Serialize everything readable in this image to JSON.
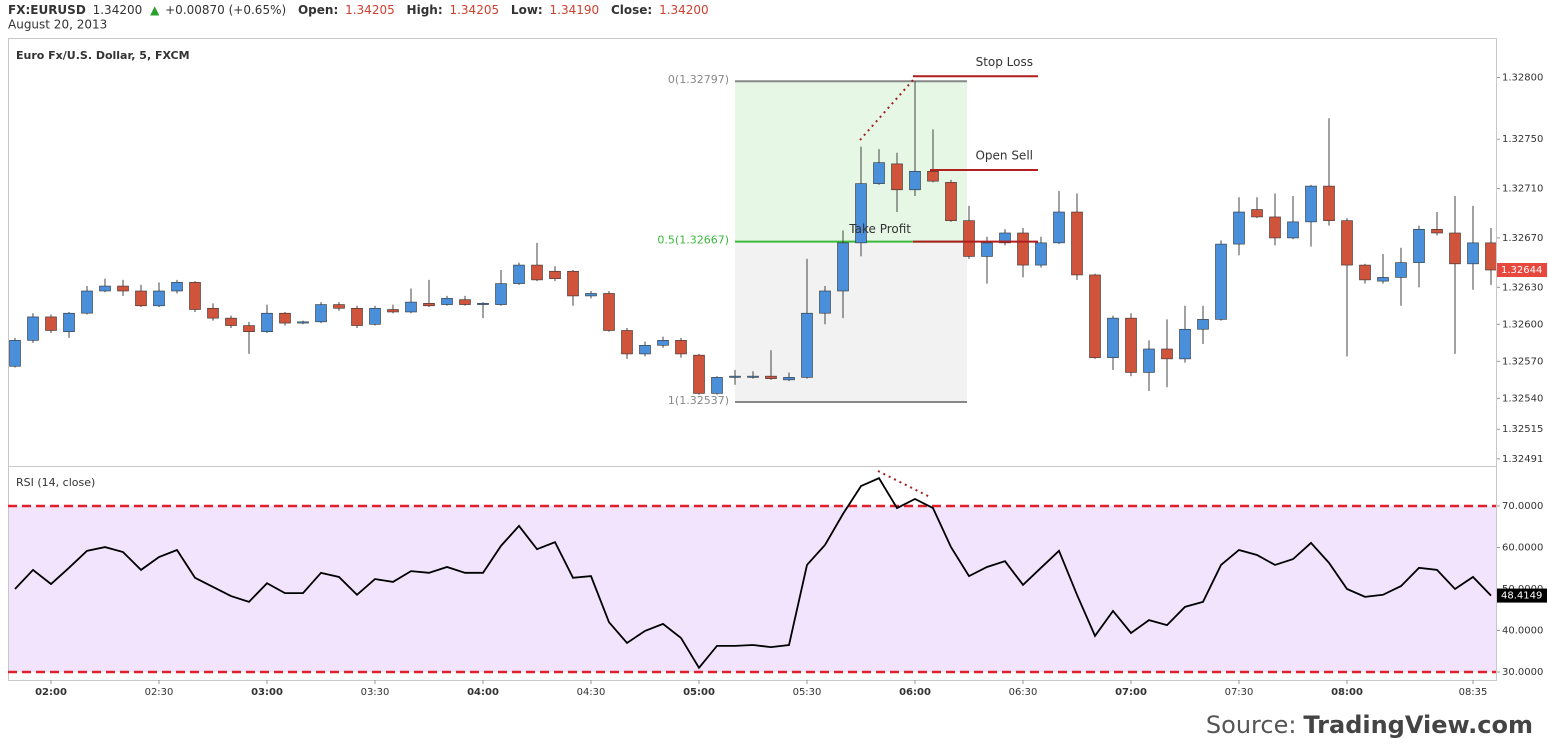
{
  "header": {
    "symbol": "FX:EURUSD",
    "price": "1.34200",
    "change": "+0.00870 (+0.65%)",
    "open_label": "Open:",
    "open": "1.34205",
    "high_label": "High:",
    "high": "1.34205",
    "low_label": "Low:",
    "low": "1.34190",
    "close_label": "Close:",
    "close": "1.34200",
    "date": "August 20, 2013"
  },
  "source": {
    "prefix": "Source:",
    "site": "TradingView.com"
  },
  "chart_data": [
    {
      "type": "candlestick",
      "title": "Euro Fx/U.S. Dollar, 5, FXCM",
      "categories": [
        null,
        null,
        "02:00",
        null,
        null,
        null,
        null,
        null,
        "02:30",
        null,
        null,
        null,
        null,
        null,
        "03:00",
        null,
        null,
        null,
        null,
        null,
        "03:30",
        null,
        null,
        null,
        null,
        null,
        "04:00",
        null,
        null,
        null,
        null,
        null,
        "04:30",
        null,
        null,
        null,
        null,
        null,
        "05:00",
        null,
        null,
        null,
        null,
        null,
        "05:30",
        null,
        null,
        null,
        null,
        null,
        "06:00",
        null,
        null,
        null,
        null,
        null,
        "06:30",
        null,
        null,
        null,
        null,
        null,
        "07:00",
        null,
        null,
        null,
        null,
        null,
        "07:30",
        null,
        null,
        null,
        null,
        null,
        "08:00",
        null,
        null,
        null,
        null,
        null,
        null,
        "08:35",
        null
      ],
      "open": [
        1.32566,
        1.32587,
        1.32606,
        1.32594,
        1.32609,
        1.32627,
        1.32631,
        1.32627,
        1.32615,
        1.32627,
        1.32634,
        1.32613,
        1.32605,
        1.32599,
        1.32594,
        1.32609,
        1.32601,
        1.32602,
        1.32616,
        1.32613,
        1.326,
        1.32612,
        1.3261,
        1.32617,
        1.32616,
        1.3262,
        1.32616,
        1.32616,
        1.32633,
        1.32648,
        1.32643,
        1.32643,
        1.32623,
        1.32625,
        1.32595,
        1.32576,
        1.32583,
        1.32587,
        1.32575,
        1.32544,
        1.32557,
        1.32557,
        1.32558,
        1.32555,
        1.32557,
        1.32609,
        1.32627,
        1.32666,
        1.32714,
        1.3273,
        1.32709,
        1.32724,
        1.32715,
        1.32684,
        1.32655,
        1.32666,
        1.32674,
        1.32648,
        1.32666,
        1.32691,
        1.3264,
        1.32573,
        1.32605,
        1.32561,
        1.3258,
        1.32572,
        1.32596,
        1.32604,
        1.32665,
        1.32693,
        1.32687,
        1.3267,
        1.32683,
        1.32712,
        1.32684,
        1.32648,
        1.32635,
        1.32638,
        1.3265,
        1.32677,
        1.32674,
        1.32649,
        1.32666
      ],
      "high": [
        1.32589,
        1.32609,
        1.32608,
        1.3261,
        1.32631,
        1.32637,
        1.32636,
        1.32632,
        1.32634,
        1.32636,
        1.32635,
        1.32617,
        1.32607,
        1.32602,
        1.32616,
        1.3261,
        1.32603,
        1.32618,
        1.32618,
        1.32615,
        1.32615,
        1.32616,
        1.32629,
        1.32636,
        1.32623,
        1.32623,
        1.32618,
        1.32644,
        1.3265,
        1.32666,
        1.32647,
        1.32644,
        1.32627,
        1.32627,
        1.32597,
        1.32586,
        1.3259,
        1.32589,
        1.32576,
        1.32558,
        1.32563,
        1.32562,
        1.32579,
        1.32561,
        1.32653,
        1.32631,
        1.32676,
        1.32744,
        1.32742,
        1.32739,
        1.32797,
        1.32758,
        1.32717,
        1.32696,
        1.32671,
        1.32677,
        1.32678,
        1.32671,
        1.32708,
        1.32706,
        1.32641,
        1.32607,
        1.32609,
        1.32587,
        1.32604,
        1.32615,
        1.32615,
        1.32668,
        1.32703,
        1.32703,
        1.32706,
        1.32704,
        1.32713,
        1.32767,
        1.32686,
        1.32649,
        1.32657,
        1.32662,
        1.3268,
        1.32691,
        1.32704,
        1.32696,
        1.32678
      ],
      "low": [
        1.32565,
        1.32585,
        1.32593,
        1.32589,
        1.32608,
        1.32626,
        1.32623,
        1.32614,
        1.32614,
        1.32625,
        1.3261,
        1.32603,
        1.32597,
        1.32576,
        1.32593,
        1.32599,
        1.326,
        1.32601,
        1.32611,
        1.32597,
        1.32599,
        1.32609,
        1.32609,
        1.32614,
        1.32615,
        1.32615,
        1.32605,
        1.32615,
        1.32632,
        1.32635,
        1.32635,
        1.32615,
        1.32621,
        1.32594,
        1.32572,
        1.32574,
        1.32581,
        1.32573,
        1.32543,
        1.32543,
        1.32551,
        1.32556,
        1.32555,
        1.32554,
        1.32556,
        1.326,
        1.32605,
        1.32655,
        1.32713,
        1.32691,
        1.32704,
        1.32715,
        1.32683,
        1.32653,
        1.32633,
        1.32664,
        1.32638,
        1.32646,
        1.32665,
        1.32636,
        1.32572,
        1.32563,
        1.32558,
        1.32546,
        1.32549,
        1.32569,
        1.32584,
        1.32603,
        1.32656,
        1.32686,
        1.32664,
        1.32669,
        1.32663,
        1.3268,
        1.32574,
        1.32633,
        1.32633,
        1.32615,
        1.3263,
        1.32672,
        1.32576,
        1.32628,
        1.32632
      ],
      "close": [
        1.32587,
        1.32606,
        1.32595,
        1.32609,
        1.32627,
        1.32631,
        1.32627,
        1.32615,
        1.32627,
        1.32634,
        1.32612,
        1.32605,
        1.32599,
        1.32594,
        1.32609,
        1.32601,
        1.32602,
        1.32616,
        1.32613,
        1.32599,
        1.32613,
        1.3261,
        1.32618,
        1.32615,
        1.32621,
        1.32616,
        1.32617,
        1.32633,
        1.32648,
        1.32636,
        1.32637,
        1.32623,
        1.32625,
        1.32595,
        1.32576,
        1.32583,
        1.32587,
        1.32576,
        1.32544,
        1.32557,
        1.32558,
        1.32558,
        1.32556,
        1.32557,
        1.32609,
        1.32627,
        1.32666,
        1.32714,
        1.32731,
        1.32709,
        1.32724,
        1.32716,
        1.32684,
        1.32655,
        1.32666,
        1.32674,
        1.32648,
        1.32666,
        1.32691,
        1.3264,
        1.32573,
        1.32605,
        1.32561,
        1.3258,
        1.32572,
        1.32596,
        1.32604,
        1.32665,
        1.32691,
        1.32687,
        1.3267,
        1.32683,
        1.32712,
        1.32684,
        1.32648,
        1.32636,
        1.32638,
        1.3265,
        1.32677,
        1.32674,
        1.32649,
        1.32666,
        1.32644
      ],
      "up_color": "#4a8fd9",
      "down_color": "#d0543c",
      "last_color": "#e8473d",
      "ylim": [
        1.32486,
        1.32832
      ],
      "yticks": [
        {
          "value": 1.328,
          "label": "1.32800"
        },
        {
          "value": 1.3275,
          "label": "1.32750"
        },
        {
          "value": 1.3271,
          "label": "1.32710"
        },
        {
          "value": 1.3267,
          "label": "1.32670"
        },
        {
          "value": 1.3263,
          "label": "1.32630"
        },
        {
          "value": 1.326,
          "label": "1.32600"
        },
        {
          "value": 1.3257,
          "label": "1.32570"
        },
        {
          "value": 1.3254,
          "label": "1.32540"
        },
        {
          "value": 1.32515,
          "label": "1.32515"
        },
        {
          "value": 1.32491,
          "label": "1.32491"
        }
      ],
      "fibonacci": [
        {
          "value": 1.32797,
          "label": "0(1.32797)",
          "color": "#888888"
        },
        {
          "value": 1.32667,
          "label": "0.5(1.32667)",
          "color": "#3cb93c"
        },
        {
          "value": 1.32537,
          "label": "1(1.32537)",
          "color": "#888888"
        }
      ],
      "fib_fills": [
        "#e6f7e6",
        "#f2f2f2"
      ],
      "annotations": [
        {
          "text": "Stop Loss",
          "price": 1.32801
        },
        {
          "text": "Open Sell",
          "price": 1.32725
        },
        {
          "text": "Take Profit",
          "price": 1.32667
        }
      ],
      "annotation_color": "#b01e1e"
    },
    {
      "type": "line",
      "title": "RSI (14, close)",
      "values": [
        50.0,
        54.6,
        51.2,
        55.1,
        59.2,
        60.1,
        58.9,
        54.6,
        57.7,
        59.4,
        52.7,
        50.5,
        48.3,
        46.9,
        51.4,
        49.0,
        49.0,
        53.9,
        52.9,
        48.6,
        52.4,
        51.7,
        54.3,
        53.9,
        55.3,
        53.9,
        53.9,
        60.4,
        65.2,
        59.6,
        61.3,
        52.7,
        53.1,
        42.0,
        37.0,
        39.9,
        41.6,
        38.2,
        31.0,
        36.3,
        36.3,
        36.5,
        36.0,
        36.5,
        55.8,
        60.6,
        68.1,
        74.8,
        76.7,
        69.5,
        71.7,
        69.5,
        60.1,
        53.1,
        55.3,
        56.7,
        51.0,
        55.1,
        59.2,
        48.6,
        38.7,
        44.7,
        39.4,
        42.5,
        41.3,
        45.7,
        46.9,
        55.8,
        59.4,
        58.2,
        55.8,
        57.2,
        61.1,
        56.3,
        50.0,
        48.1,
        48.6,
        50.7,
        55.1,
        54.6,
        50.0,
        52.9,
        48.4149
      ],
      "color": "#000000",
      "ylim": [
        28.07,
        79.4
      ],
      "yticks": [
        {
          "value": 70,
          "label": "70.0000"
        },
        {
          "value": 60,
          "label": "60.0000"
        },
        {
          "value": 50,
          "label": "50.0000"
        },
        {
          "value": 40,
          "label": "40.0000"
        },
        {
          "value": 30,
          "label": "30.0000"
        }
      ],
      "levels": [
        70,
        30
      ],
      "level_color": "#e0202a",
      "band_color": "#f2e4fc"
    }
  ]
}
